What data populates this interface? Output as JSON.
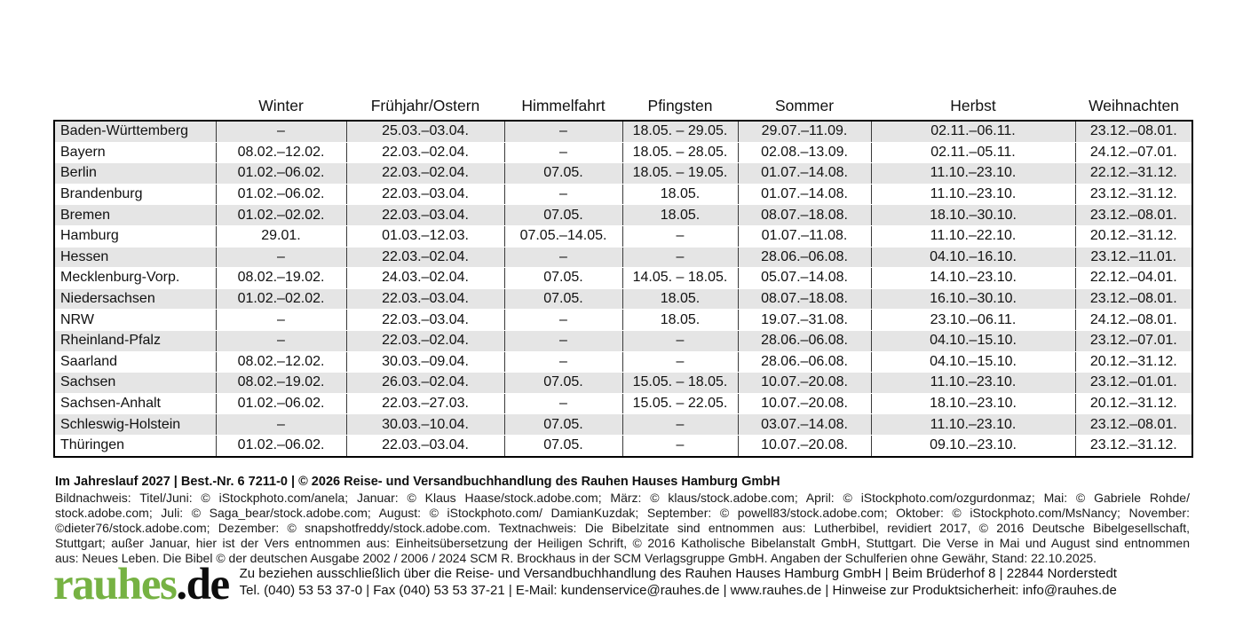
{
  "document": {
    "kind": "Schulferien-Übersicht (Kalender-Rückseite)",
    "year": "2027"
  },
  "table": {
    "headers": [
      "",
      "Winter",
      "Frühjahr/Ostern",
      "Himmelfahrt",
      "Pfingsten",
      "Sommer",
      "Herbst",
      "Weihnachten"
    ],
    "rows": [
      [
        "Baden-Württemberg",
        "–",
        "25.03.–03.04.",
        "–",
        "18.05. – 29.05.",
        "29.07.–11.09.",
        "02.11.–06.11.",
        "23.12.–08.01."
      ],
      [
        "Bayern",
        "08.02.–12.02.",
        "22.03.–02.04.",
        "–",
        "18.05. – 28.05.",
        "02.08.–13.09.",
        "02.11.–05.11.",
        "24.12.–07.01."
      ],
      [
        "Berlin",
        "01.02.–06.02.",
        "22.03.–02.04.",
        "07.05.",
        "18.05. – 19.05.",
        "01.07.–14.08.",
        "11.10.–23.10.",
        "22.12.–31.12."
      ],
      [
        "Brandenburg",
        "01.02.–06.02.",
        "22.03.–03.04.",
        "–",
        "18.05.",
        "01.07.–14.08.",
        "11.10.–23.10.",
        "23.12.–31.12."
      ],
      [
        "Bremen",
        "01.02.–02.02.",
        "22.03.–03.04.",
        "07.05.",
        "18.05.",
        "08.07.–18.08.",
        "18.10.–30.10.",
        "23.12.–08.01."
      ],
      [
        "Hamburg",
        "29.01.",
        "01.03.–12.03.",
        "07.05.–14.05.",
        "–",
        "01.07.–11.08.",
        "11.10.–22.10.",
        "20.12.–31.12."
      ],
      [
        "Hessen",
        "–",
        "22.03.–02.04.",
        "–",
        "–",
        "28.06.–06.08.",
        "04.10.–16.10.",
        "23.12.–11.01."
      ],
      [
        "Mecklenburg-Vorp.",
        "08.02.–19.02.",
        "24.03.–02.04.",
        "07.05.",
        "14.05. – 18.05.",
        "05.07.–14.08.",
        "14.10.–23.10.",
        "22.12.–04.01."
      ],
      [
        "Niedersachsen",
        "01.02.–02.02.",
        "22.03.–03.04.",
        "07.05.",
        "18.05.",
        "08.07.–18.08.",
        "16.10.–30.10.",
        "23.12.–08.01."
      ],
      [
        "NRW",
        "–",
        "22.03.–03.04.",
        "–",
        "18.05.",
        "19.07.–31.08.",
        "23.10.–06.11.",
        "24.12.–08.01."
      ],
      [
        "Rheinland-Pfalz",
        "–",
        "22.03.–02.04.",
        "–",
        "–",
        "28.06.–06.08.",
        "04.10.–15.10.",
        "23.12.–07.01."
      ],
      [
        "Saarland",
        "08.02.–12.02.",
        "30.03.–09.04.",
        "–",
        "–",
        "28.06.–06.08.",
        "04.10.–15.10.",
        "20.12.–31.12."
      ],
      [
        "Sachsen",
        "08.02.–19.02.",
        "26.03.–02.04.",
        "07.05.",
        "15.05. – 18.05.",
        "10.07.–20.08.",
        "11.10.–23.10.",
        "23.12.–01.01."
      ],
      [
        "Sachsen-Anhalt",
        "01.02.–06.02.",
        "22.03.–27.03.",
        "–",
        "15.05. – 22.05.",
        "10.07.–20.08.",
        "18.10.–23.10.",
        "20.12.–31.12."
      ],
      [
        "Schleswig-Holstein",
        "–",
        "30.03.–10.04.",
        "07.05.",
        "–",
        "03.07.–14.08.",
        "11.10.–23.10.",
        "23.12.–08.01."
      ],
      [
        "Thüringen",
        "01.02.–06.02.",
        "22.03.–03.04.",
        "07.05.",
        "–",
        "10.07.–20.08.",
        "09.10.–23.10.",
        "23.12.–31.12."
      ]
    ],
    "shaded_row_indices": [
      0,
      2,
      4,
      6,
      8,
      10,
      12,
      14
    ]
  },
  "footer": {
    "edition_line": "Im Jahreslauf 2027 | Best.-Nr. 6 7211-0 | © 2026 Reise- und Versandbuchhandlung des Rauhen Hauses Hamburg GmbH",
    "credits_lines": [
      "Bildnachweis: Titel/Juni: © iStockphoto.com/anela; Januar: © Klaus Haase/stock.adobe.com; März: © klaus/stock.adobe.com; April: © iStockphoto.com/ozgurdonmaz; Mai: © Gabriele Rohde/",
      "stock.adobe.com; Juli: © Saga_bear/stock.adobe.com; August: © iStockphoto.com/ DamianKuzdak; September: © powell83/stock.adobe.com; Oktober: © iStockphoto.com/MsNancy; November:",
      "©dieter76/stock.adobe.com; Dezember: © snapshotfreddy/stock.adobe.com. Textnachweis: Die Bibelzitate sind entnommen aus: Lutherbibel, revidiert 2017, © 2016 Deutsche Bibelgesellschaft,",
      "Stuttgart; außer Januar, hier ist der Vers entnommen aus: Einheitsübersetzung der Heiligen Schrift, © 2016 Katholische Bibelanstalt GmbH, Stuttgart. Die Verse in Mai und August sind entnommen",
      "aus: Neues Leben. Die Bibel © der deutschen Ausgabe 2002 / 2006 / 2024 SCM R. Brockhaus in der SCM Verlagsgruppe GmbH. Angaben der Schulferien ohne Gewähr, Stand: 22.10.2025."
    ],
    "logo": {
      "green_part": "rauhes",
      "black_part": ".de"
    },
    "contact_line1": "Zu beziehen ausschließlich über die Reise- und Versandbuchhandlung des Rauhen Hauses Hamburg GmbH | Beim Brüderhof 8 | 22844 Norderstedt",
    "contact_line2": "Tel. (040) 53 53 37-0 | Fax (040) 53 53 37-21 | E-Mail: kundenservice@rauhes.de | www.rauhes.de | Hinweise zur Produktsicherheit: info@rauhes.de"
  },
  "colors": {
    "logo_green": "#76b243",
    "row_shade": "#e5e5e5",
    "table_border": "#000000"
  }
}
